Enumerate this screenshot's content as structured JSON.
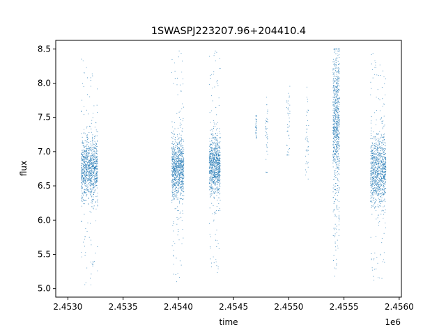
{
  "chart_data": {
    "type": "scatter",
    "title": "1SWASPJ223207.96+204410.4",
    "xlabel": "time",
    "ylabel": "flux",
    "x_offset_label": "1e6",
    "xlim": [
      2.45289,
      2.45602
    ],
    "ylim": [
      4.875,
      8.625
    ],
    "xticks": [
      2.453,
      2.4535,
      2.454,
      2.4545,
      2.455,
      2.4555,
      2.456
    ],
    "xtick_labels": [
      "2.4530",
      "2.4535",
      "2.4540",
      "2.4545",
      "2.4550",
      "2.4555",
      "2.4560"
    ],
    "yticks": [
      5.0,
      5.5,
      6.0,
      6.5,
      7.0,
      7.5,
      8.0,
      8.5
    ],
    "ytick_labels": [
      "5.0",
      "5.5",
      "6.0",
      "6.5",
      "7.0",
      "7.5",
      "8.0",
      "8.5"
    ],
    "grid": false,
    "legend": "none",
    "marker_color": "#1f77b4",
    "observing_seasons": [
      {
        "x_range": [
          2.45312,
          2.45327
        ],
        "flux_center": 6.75,
        "flux_spread": 0.22,
        "flux_min": 5.05,
        "flux_max": 8.45
      },
      {
        "x_range": [
          2.45394,
          2.45405
        ],
        "flux_center": 6.75,
        "flux_spread": 0.22,
        "flux_min": 5.1,
        "flux_max": 8.48
      },
      {
        "x_range": [
          2.45428,
          2.45438
        ],
        "flux_center": 6.8,
        "flux_spread": 0.22,
        "flux_min": 5.18,
        "flux_max": 8.5
      },
      {
        "x_range": [
          2.4547,
          2.45471
        ],
        "flux_center": 7.35,
        "flux_spread": 0.12,
        "flux_min": 7.2,
        "flux_max": 7.52
      },
      {
        "x_range": [
          2.45479,
          2.45481
        ],
        "flux_center": 7.25,
        "flux_spread": 0.3,
        "flux_min": 6.7,
        "flux_max": 7.85
      },
      {
        "x_range": [
          2.45498,
          2.45501
        ],
        "flux_center": 7.45,
        "flux_spread": 0.3,
        "flux_min": 6.95,
        "flux_max": 8.0
      },
      {
        "x_range": [
          2.45515,
          2.45518
        ],
        "flux_center": 7.2,
        "flux_spread": 0.3,
        "flux_min": 6.6,
        "flux_max": 7.95
      },
      {
        "x_range": [
          2.4554,
          2.45546
        ],
        "flux_center": 7.4,
        "flux_spread": 0.55,
        "flux_min": 5.15,
        "flux_max": 8.5
      },
      {
        "x_range": [
          2.45574,
          2.45588
        ],
        "flux_center": 6.72,
        "flux_spread": 0.26,
        "flux_min": 5.05,
        "flux_max": 8.45
      }
    ]
  }
}
